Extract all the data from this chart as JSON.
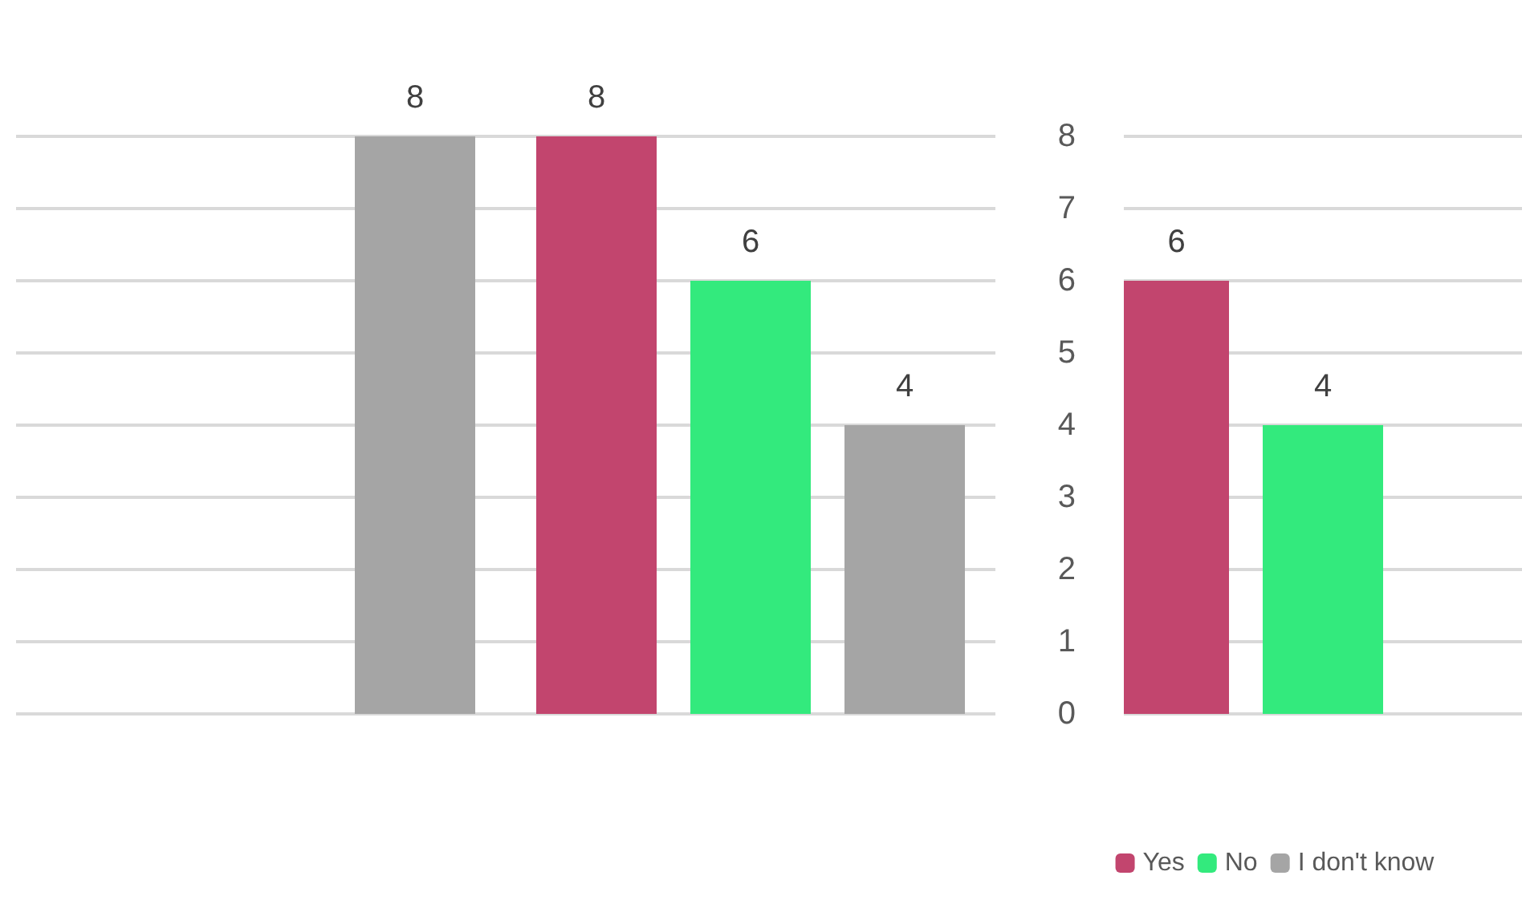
{
  "chart_data": [
    {
      "type": "bar",
      "categories": [
        null,
        null
      ],
      "series": [
        {
          "color": "#c2456e",
          "values": [
            null,
            8
          ]
        },
        {
          "color": "#33ea7d",
          "values": [
            null,
            6
          ]
        },
        {
          "color": "#a5a5a5",
          "values": [
            8,
            4
          ]
        }
      ],
      "ylim": [
        0,
        8
      ],
      "yticks": [
        0,
        1,
        2,
        3,
        4,
        5,
        6,
        7,
        8
      ],
      "grid": "y",
      "data_labels": true,
      "tick_labels": false,
      "legend": false
    },
    {
      "type": "bar",
      "categories": [
        null
      ],
      "series": [
        {
          "name": "Yes",
          "color": "#c2456e",
          "values": [
            6
          ]
        },
        {
          "name": "No",
          "color": "#33ea7d",
          "values": [
            4
          ]
        },
        {
          "name": "I don't know",
          "color": "#a5a5a5",
          "values": [
            null
          ]
        }
      ],
      "ylim": [
        0,
        8
      ],
      "yticks": [
        0,
        1,
        2,
        3,
        4,
        5,
        6,
        7,
        8
      ],
      "grid": "y",
      "data_labels": true,
      "tick_labels": "y",
      "legend": "bottom"
    }
  ]
}
